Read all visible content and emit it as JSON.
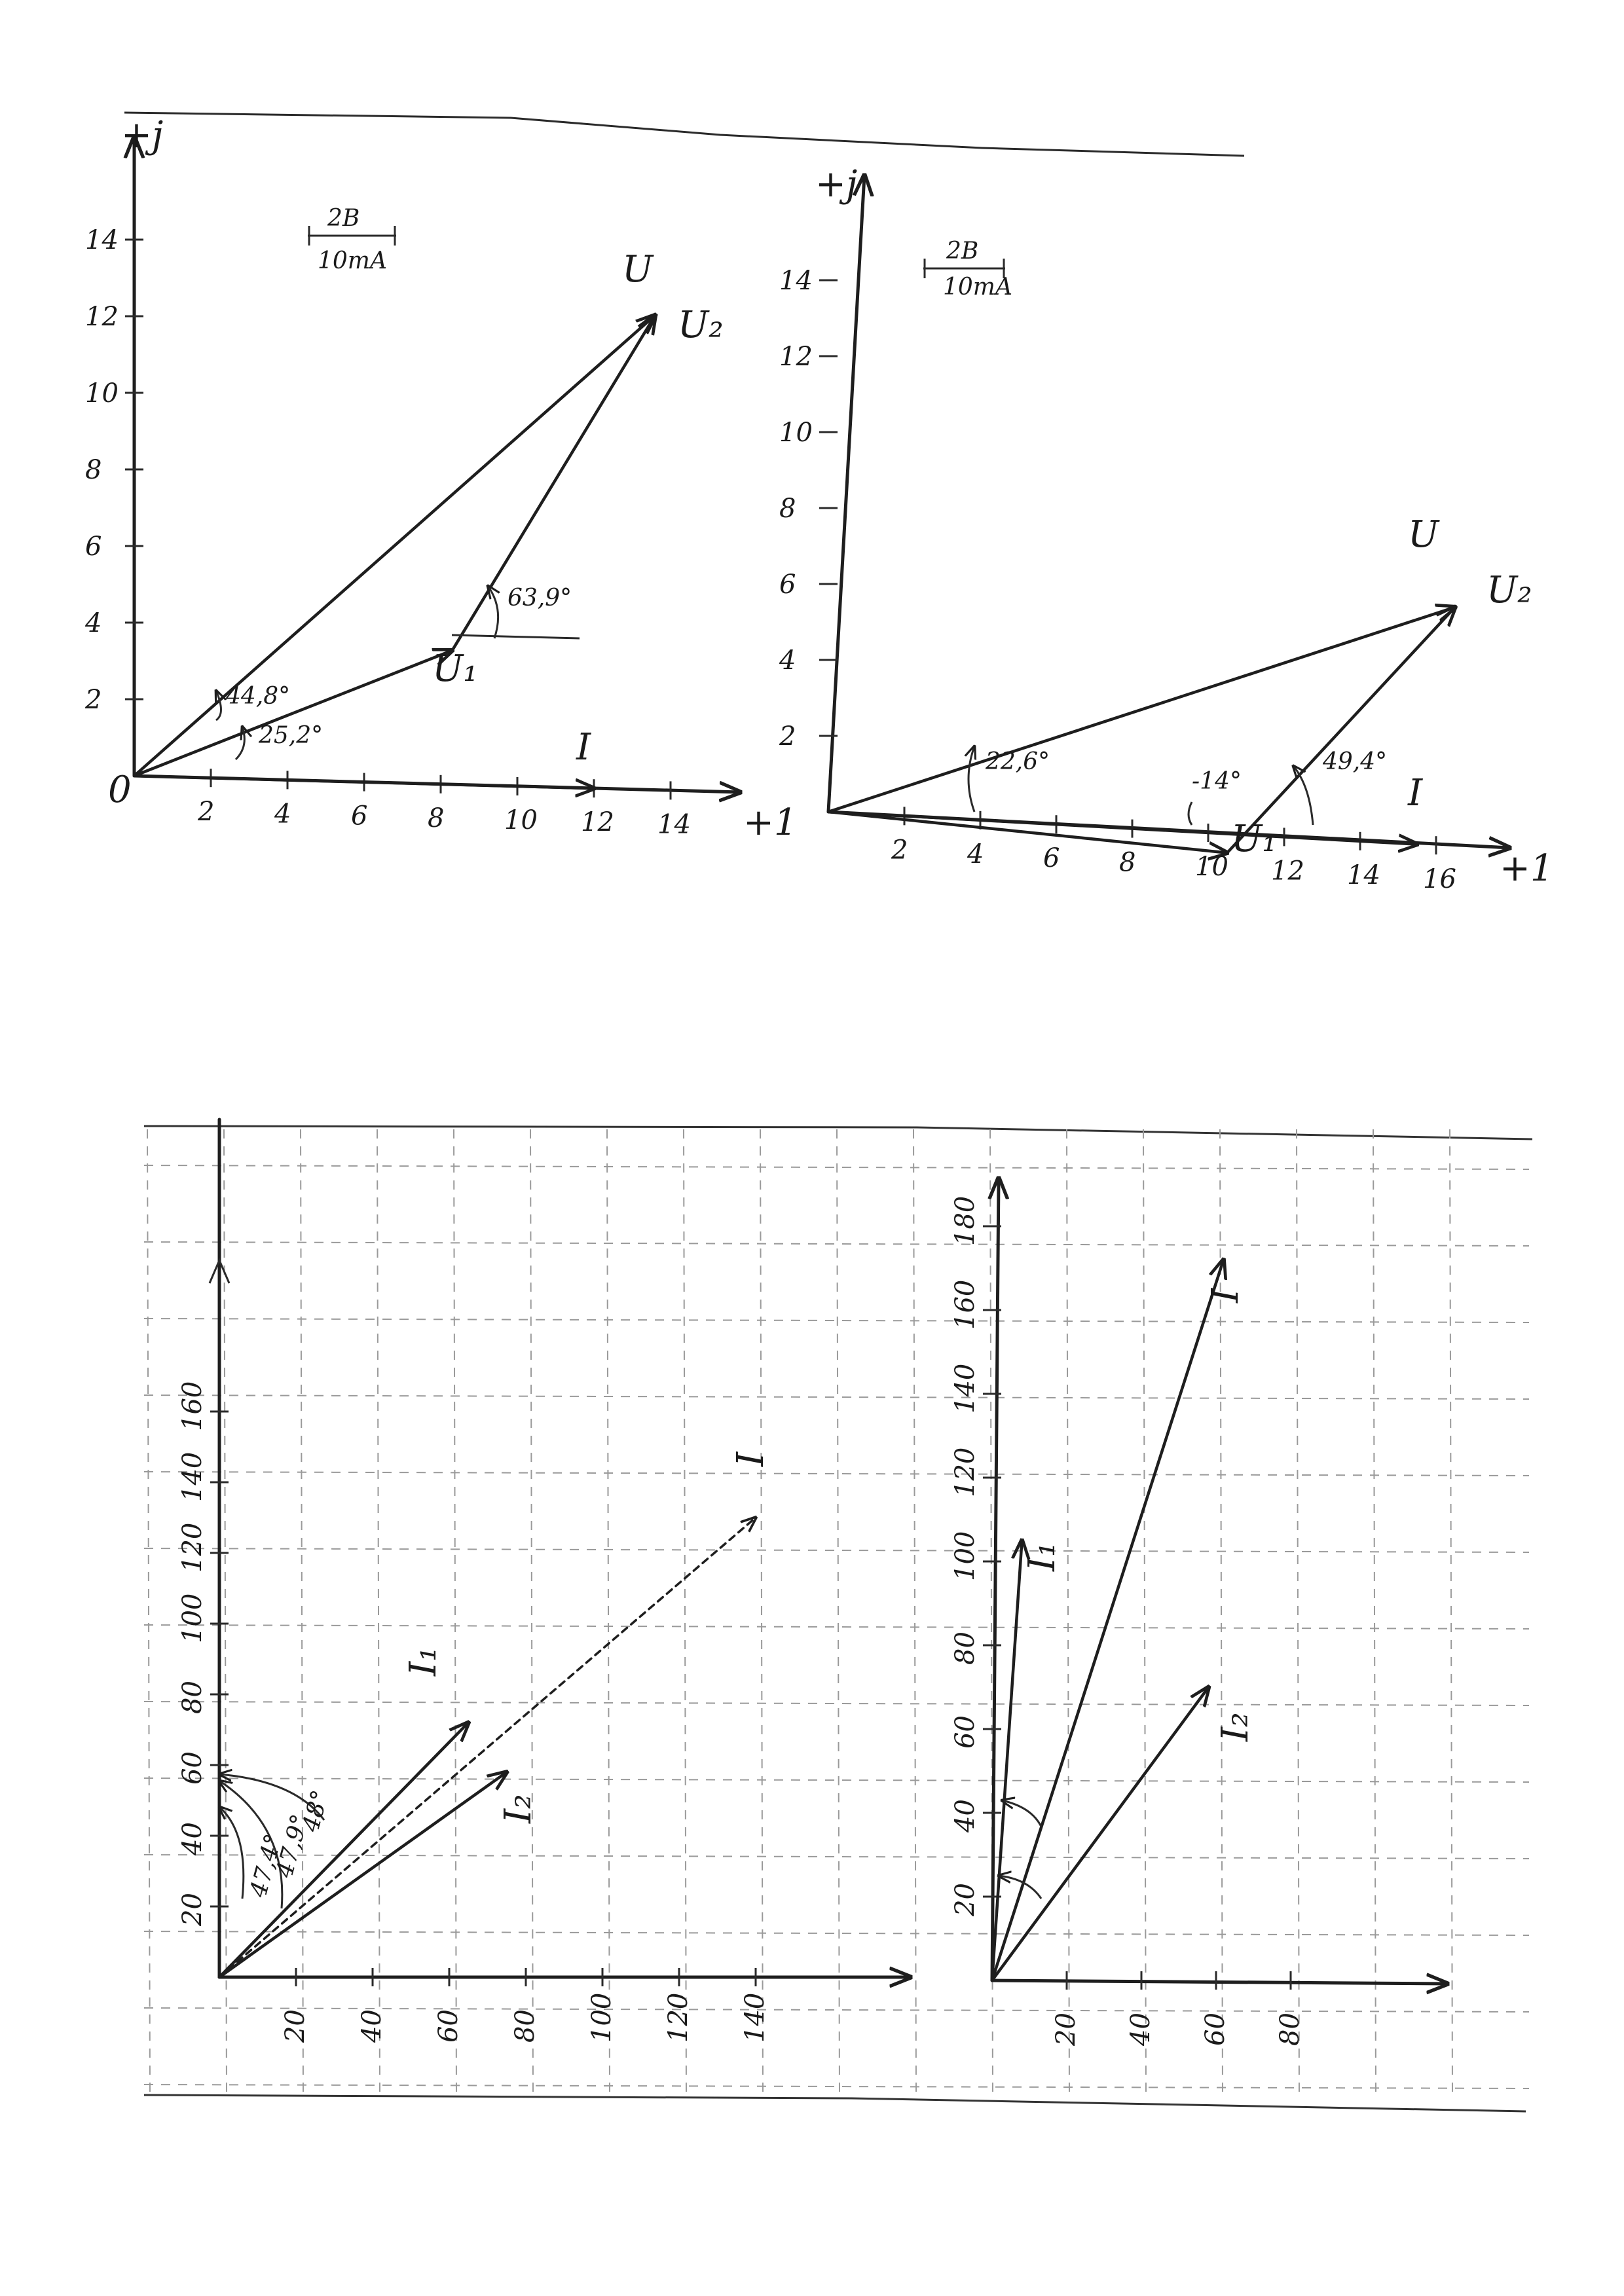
{
  "panels": [
    {
      "id": "voltage-diagram-1",
      "axes": {
        "x_label": "+1",
        "y_label": "+j",
        "origin_label": "0"
      },
      "scale": {
        "top": "2B",
        "bottom": "10mA"
      },
      "x_ticks": [
        "2",
        "4",
        "6",
        "8",
        "10",
        "12",
        "14"
      ],
      "y_ticks": [
        "2",
        "4",
        "6",
        "8",
        "10",
        "12",
        "14"
      ],
      "vectors": [
        {
          "label": "I",
          "x": 12,
          "y": 0
        },
        {
          "label": "U₁",
          "x": 8.3,
          "y": 3.5
        },
        {
          "label": "U₂",
          "x": 13.6,
          "y": 12.4,
          "from": [
            8.3,
            3.5
          ]
        },
        {
          "label": "U",
          "x": 13.6,
          "y": 12.4
        }
      ],
      "angles": [
        "44,8°",
        "25,2°",
        "63,9°"
      ]
    },
    {
      "id": "voltage-diagram-2",
      "axes": {
        "x_label": "+1",
        "y_label": "+j"
      },
      "scale": {
        "top": "2B",
        "bottom": "10mA"
      },
      "x_ticks": [
        "2",
        "4",
        "6",
        "8",
        "10",
        "12",
        "14",
        "16"
      ],
      "y_ticks": [
        "2",
        "4",
        "6",
        "8",
        "10",
        "12",
        "14"
      ],
      "vectors": [
        {
          "label": "I",
          "x": 15.5,
          "y": 0
        },
        {
          "label": "U₁",
          "x": 10.5,
          "y": -0.5
        },
        {
          "label": "U₂",
          "x": 16.5,
          "y": 6.3,
          "from": [
            10.5,
            -0.5
          ]
        },
        {
          "label": "U",
          "x": 16.5,
          "y": 6.3
        }
      ],
      "angles": [
        "22,6°",
        "-14°",
        "49,4°"
      ]
    },
    {
      "id": "current-diagram-1",
      "x_ticks": [
        "20",
        "40",
        "60",
        "80",
        "100",
        "120",
        "140"
      ],
      "y_ticks": [
        "20",
        "40",
        "60",
        "80",
        "100",
        "120",
        "140",
        "160"
      ],
      "vectors": [
        {
          "label": "I₁",
          "x": 65,
          "y": 72
        },
        {
          "label": "I₂",
          "x": 75,
          "y": 58
        },
        {
          "label": "I",
          "x": 140,
          "y": 130
        }
      ],
      "angles": [
        "47,4°",
        "47,9°",
        "48°"
      ]
    },
    {
      "id": "current-diagram-2",
      "x_ticks": [
        "20",
        "40",
        "60",
        "80"
      ],
      "y_ticks": [
        "20",
        "40",
        "60",
        "80",
        "100",
        "120",
        "140",
        "160",
        "180"
      ],
      "vectors": [
        {
          "label": "I₁",
          "x": 8,
          "y": 105
        },
        {
          "label": "I₂",
          "x": 58,
          "y": 70
        },
        {
          "label": "I",
          "x": 62,
          "y": 172
        }
      ]
    }
  ]
}
